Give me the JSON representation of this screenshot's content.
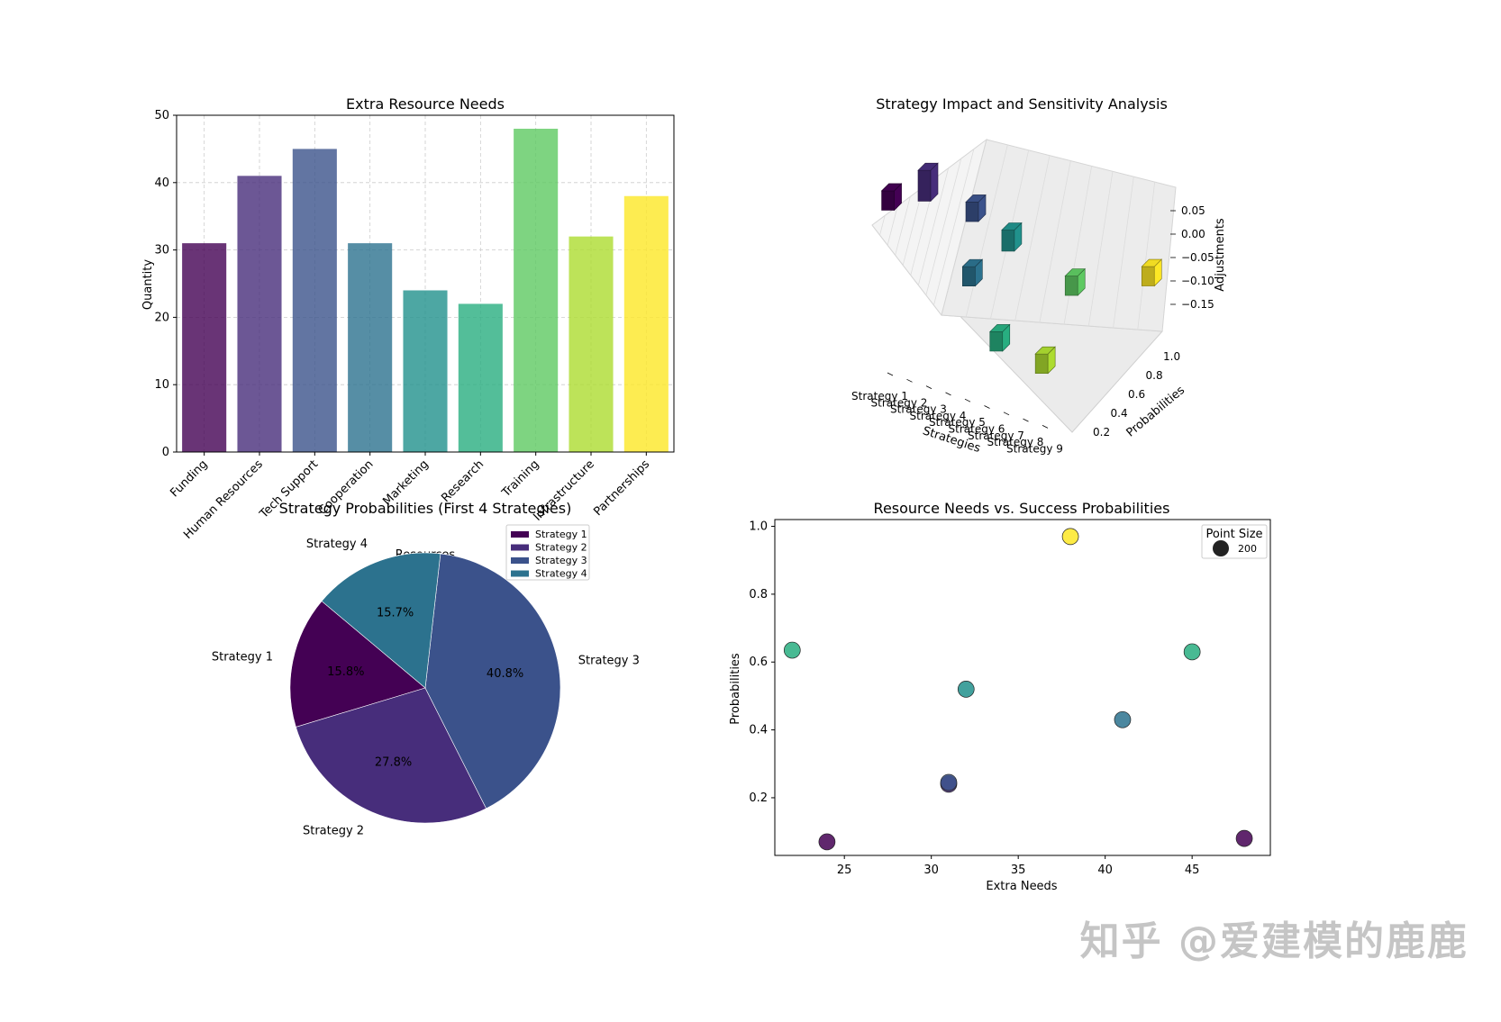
{
  "watermark": "知乎 @爱建模的鹿鹿",
  "chart_data": [
    {
      "type": "bar",
      "title": "Extra Resource Needs",
      "xlabel": "Resources",
      "ylabel": "Quantity",
      "categories": [
        "Funding",
        "Human Resources",
        "Tech Support",
        "Cooperation",
        "Marketing",
        "Research",
        "Training",
        "Infrastructure",
        "Partnerships"
      ],
      "values": [
        31,
        41,
        45,
        31,
        24,
        22,
        48,
        32,
        38
      ],
      "colors": [
        "#440154",
        "#472d7b",
        "#3b528b",
        "#2c728e",
        "#21918c",
        "#28ae80",
        "#5ec962",
        "#addc30",
        "#fde725"
      ],
      "ylim": [
        0,
        50
      ],
      "yticks": [
        0,
        10,
        20,
        30,
        40,
        50
      ],
      "grid": true,
      "grid_style": "dashed"
    },
    {
      "type": "bar3d",
      "title": "Strategy Impact and Sensitivity Analysis",
      "xlabel": "Strategies",
      "ylabel": "Probabilities",
      "zlabel": "Adjustments",
      "categories": [
        "Strategy 1",
        "Strategy 2",
        "Strategy 3",
        "Strategy 4",
        "Strategy 5",
        "Strategy 6",
        "Strategy 7",
        "Strategy 8",
        "Strategy 9"
      ],
      "probabilities": [
        0.1,
        0.25,
        0.52,
        0.25,
        0.43,
        0.07,
        0.63,
        0.08,
        0.97
      ],
      "adjustments": [
        -0.05,
        0.04,
        -0.08,
        -0.12,
        0.01,
        -0.12,
        -0.06,
        -0.05,
        0.0
      ],
      "colors": [
        "#440154",
        "#472d7b",
        "#3b528b",
        "#2c728e",
        "#21918c",
        "#28ae80",
        "#5ec962",
        "#addc30",
        "#fde725"
      ],
      "zticks": [
        "0.05",
        "0.00",
        "−0.05",
        "−0.10",
        "−0.15"
      ],
      "yticks": [
        "0.2",
        "0.4",
        "0.6",
        "0.8",
        "1.0"
      ]
    },
    {
      "type": "pie",
      "title": "Strategy Probabilities (First 4 Strategies)",
      "labels": [
        "Strategy 1",
        "Strategy 2",
        "Strategy 3",
        "Strategy 4"
      ],
      "values": [
        15.8,
        27.8,
        40.8,
        15.7
      ],
      "pct_labels": [
        "15.8%",
        "27.8%",
        "40.8%",
        "15.7%"
      ],
      "colors": [
        "#440154",
        "#472d7b",
        "#3b528b",
        "#2c728e"
      ],
      "start_angle": 140,
      "legend": "top-right"
    },
    {
      "type": "scatter",
      "title": "Resource Needs vs. Success Probabilities",
      "xlabel": "Extra Needs",
      "ylabel": "Probabilities",
      "x": [
        31,
        41,
        45,
        31,
        24,
        22,
        48,
        32,
        38
      ],
      "y": [
        0.24,
        0.43,
        0.63,
        0.245,
        0.07,
        0.635,
        0.08,
        0.52,
        0.97
      ],
      "colors": [
        "#472d7b",
        "#2c728e",
        "#28ae80",
        "#3b528b",
        "#440154",
        "#28ae80",
        "#440154",
        "#21918c",
        "#fde725"
      ],
      "xlim": [
        21,
        49.5
      ],
      "ylim": [
        0.03,
        1.02
      ],
      "xticks": [
        25,
        30,
        35,
        40,
        45
      ],
      "yticks": [
        0.2,
        0.4,
        0.6,
        0.8,
        1.0
      ],
      "legend": {
        "title": "Point Size",
        "entry": "200",
        "placement": "top-right"
      }
    }
  ]
}
